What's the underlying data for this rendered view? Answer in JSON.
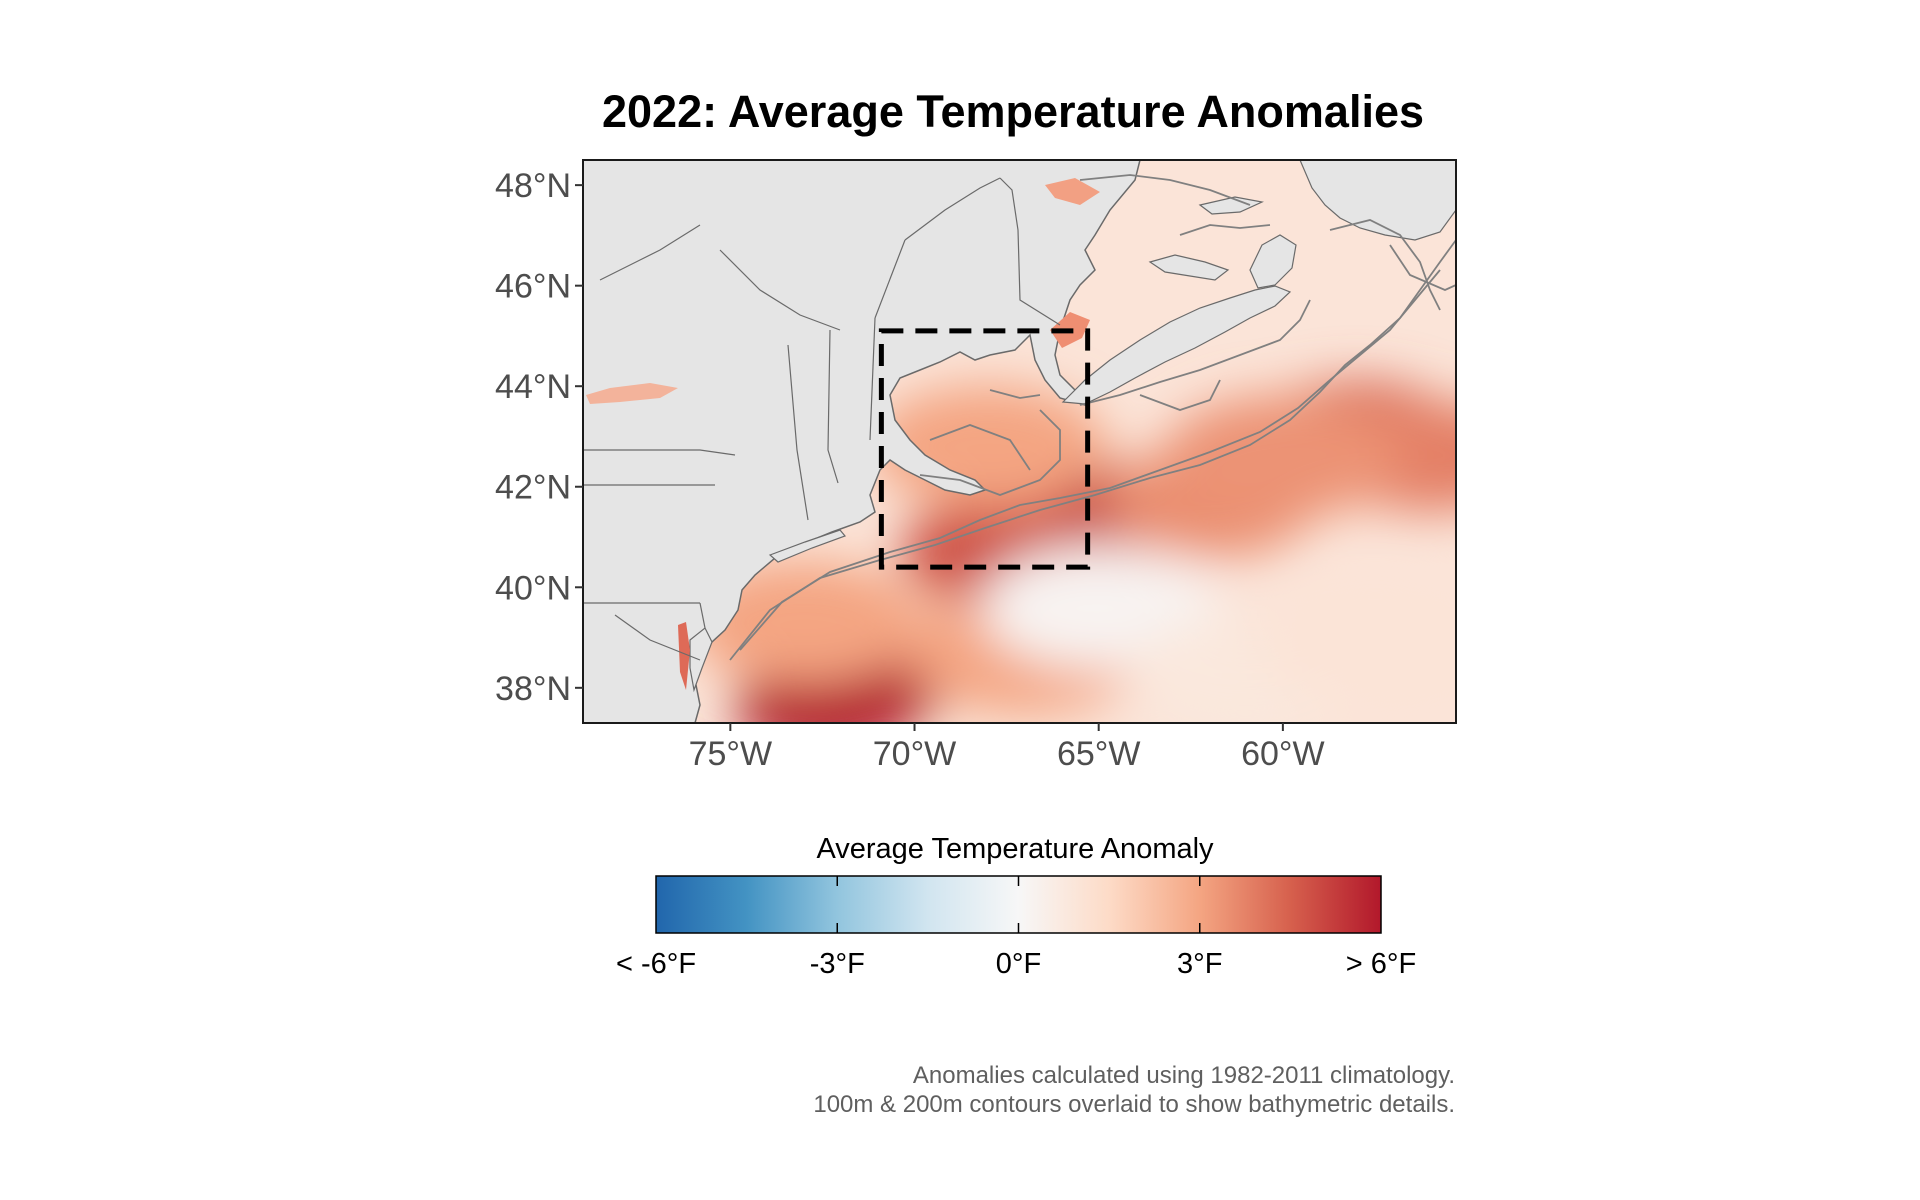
{
  "title": "2022: Average Temperature Anomalies",
  "map": {
    "lon_range": [
      -79,
      -55.3
    ],
    "lat_range": [
      37.3,
      48.5
    ],
    "lat_ticks": [
      {
        "value": 48,
        "label": "48°N"
      },
      {
        "value": 46,
        "label": "46°N"
      },
      {
        "value": 44,
        "label": "44°N"
      },
      {
        "value": 42,
        "label": "42°N"
      },
      {
        "value": 40,
        "label": "40°N"
      },
      {
        "value": 38,
        "label": "38°N"
      }
    ],
    "lon_ticks": [
      {
        "value": -75,
        "label": "75°W"
      },
      {
        "value": -70,
        "label": "70°W"
      },
      {
        "value": -65,
        "label": "65°W"
      },
      {
        "value": -60,
        "label": "60°W"
      }
    ],
    "highlight_box": {
      "lon_min": -70.9,
      "lon_max": -65.3,
      "lat_min": 40.4,
      "lat_max": 45.1
    },
    "colors": {
      "land": "#e5e5e5",
      "land_border": "#6a6a6a",
      "contour": "#808080",
      "box": "#000000"
    }
  },
  "chart_data": {
    "type": "heatmap",
    "title": "2022: Average Temperature Anomalies",
    "value_unit": "°F",
    "value_range": [
      -6,
      6
    ],
    "hotspots": [
      {
        "lon": -71.5,
        "lat": 38.0,
        "anomaly": 6.5
      },
      {
        "lon": -72.5,
        "lat": 37.6,
        "anomaly": 6.0
      },
      {
        "lon": -65.0,
        "lat": 41.5,
        "anomaly": 6.3
      },
      {
        "lon": -66.0,
        "lat": 41.1,
        "anomaly": 5.6
      },
      {
        "lon": -67.5,
        "lat": 40.7,
        "anomaly": 4.8
      },
      {
        "lon": -62.0,
        "lat": 41.7,
        "anomaly": 3.5
      },
      {
        "lon": -58.0,
        "lat": 43.0,
        "anomaly": 4.5
      },
      {
        "lon": -56.0,
        "lat": 42.6,
        "anomaly": 3.8
      },
      {
        "lon": -60.0,
        "lat": 42.6,
        "anomaly": 3.4
      },
      {
        "lon": -68.0,
        "lat": 42.8,
        "anomaly": 3.0
      },
      {
        "lon": -73.0,
        "lat": 39.3,
        "anomaly": 3.0
      },
      {
        "lon": -67.0,
        "lat": 38.7,
        "anomaly": 3.0
      }
    ],
    "coolspots": [
      {
        "lon": -65.0,
        "lat": 39.6,
        "anomaly": 0.2
      },
      {
        "lon": -61.0,
        "lat": 38.2,
        "anomaly": 0.8
      },
      {
        "lon": -57.5,
        "lat": 38.8,
        "anomaly": 1.0
      }
    ]
  },
  "colorbar": {
    "title": "Average Temperature Anomaly",
    "stops": [
      "#2166ac",
      "#4393c3",
      "#92c5de",
      "#d1e5f0",
      "#f7f7f7",
      "#fddbc7",
      "#f4a582",
      "#d6604d",
      "#b2182b"
    ],
    "labels": [
      "< -6°F",
      "-3°F",
      "0°F",
      "3°F",
      "> 6°F"
    ]
  },
  "caption": {
    "line1": "Anomalies calculated using 1982-2011 climatology.",
    "line2": "100m & 200m contours overlaid to show bathymetric details."
  }
}
